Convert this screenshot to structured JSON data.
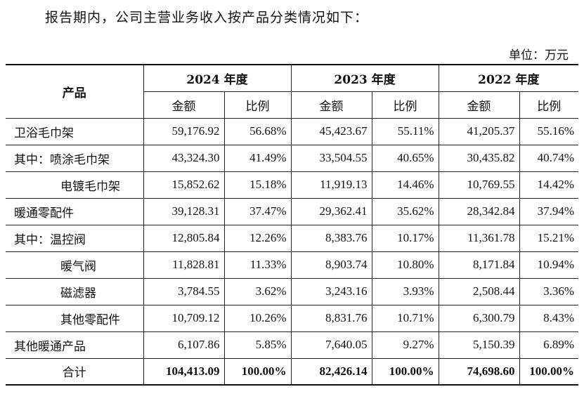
{
  "intro": "报告期内，公司主营业务收入按产品分类情况如下：",
  "unit": "单位：万元",
  "header": {
    "product": "产品",
    "years": [
      "2024 年度",
      "2023 年度",
      "2022 年度"
    ],
    "amount": "金额",
    "ratio": "比例"
  },
  "rows": [
    {
      "name": "卫浴毛巾架",
      "indent": 1,
      "values": [
        "59,176.92",
        "56.68%",
        "45,423.67",
        "55.11%",
        "41,205.37",
        "55.16%"
      ]
    },
    {
      "name": "其中：喷涂毛巾架",
      "indent": 1,
      "values": [
        "43,324.30",
        "41.49%",
        "33,504.55",
        "40.65%",
        "30,435.82",
        "40.74%"
      ]
    },
    {
      "name": "电镀毛巾架",
      "indent": 2,
      "values": [
        "15,852.62",
        "15.18%",
        "11,919.13",
        "14.46%",
        "10,769.55",
        "14.42%"
      ]
    },
    {
      "name": "暖通零配件",
      "indent": 1,
      "values": [
        "39,128.31",
        "37.47%",
        "29,362.41",
        "35.62%",
        "28,342.84",
        "37.94%"
      ]
    },
    {
      "name": "其中：温控阀",
      "indent": 1,
      "values": [
        "12,805.84",
        "12.26%",
        "8,383.76",
        "10.17%",
        "11,361.78",
        "15.21%"
      ]
    },
    {
      "name": "暖气阀",
      "indent": 2,
      "values": [
        "11,828.81",
        "11.33%",
        "8,903.74",
        "10.80%",
        "8,171.84",
        "10.94%"
      ]
    },
    {
      "name": "磁滤器",
      "indent": 2,
      "values": [
        "3,784.55",
        "3.62%",
        "3,243.16",
        "3.93%",
        "2,508.44",
        "3.36%"
      ]
    },
    {
      "name": "其他零配件",
      "indent": 2,
      "values": [
        "10,709.12",
        "10.26%",
        "8,831.76",
        "10.71%",
        "6,300.79",
        "8.43%"
      ]
    },
    {
      "name": "其他暖通产品",
      "indent": 1,
      "values": [
        "6,107.86",
        "5.85%",
        "7,640.05",
        "9.27%",
        "5,150.39",
        "6.89%"
      ]
    }
  ],
  "total": {
    "name": "合计",
    "values": [
      "104,413.09",
      "100.00%",
      "82,426.14",
      "100.00%",
      "74,698.60",
      "100.00%"
    ]
  }
}
